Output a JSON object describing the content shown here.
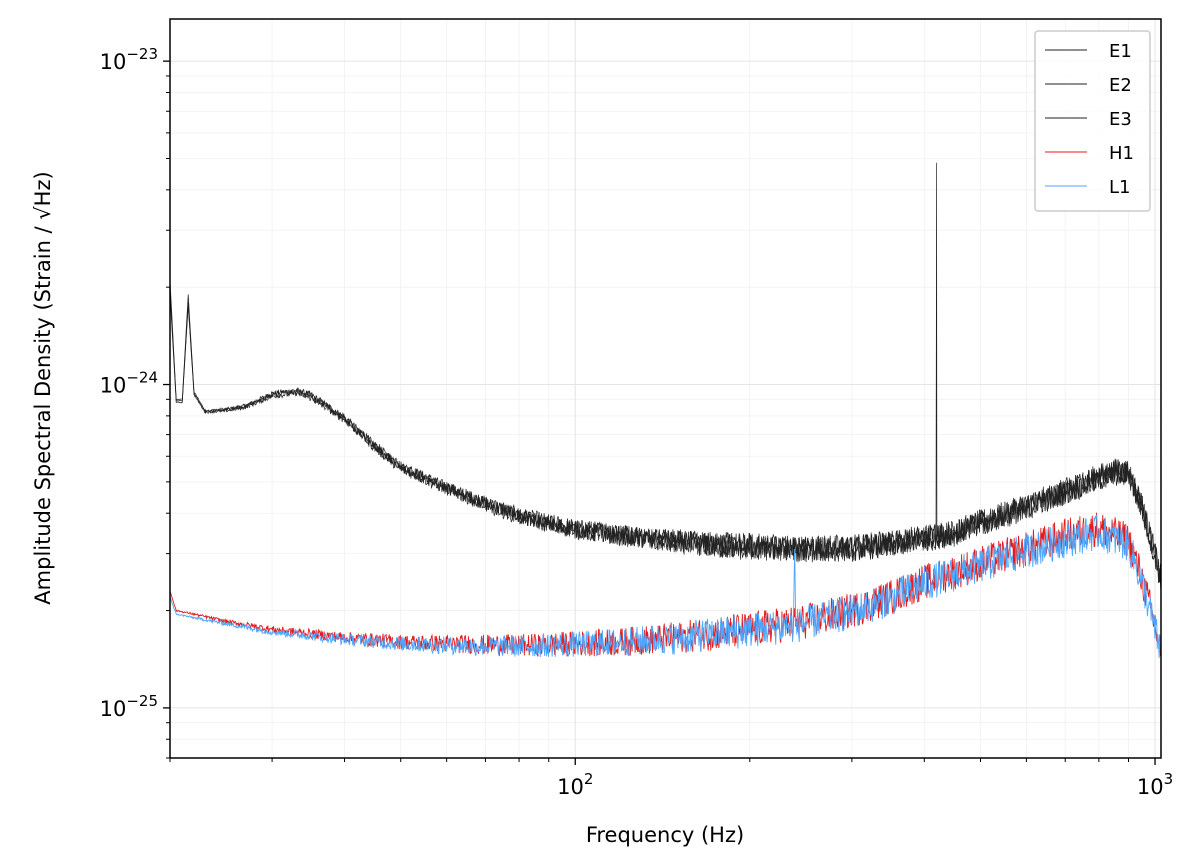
{
  "chart_data": {
    "type": "line",
    "title": "",
    "xlabel": "Frequency (Hz)",
    "ylabel": "Amplitude Spectral Density (Strain / √Hz)",
    "x_scale": "log",
    "y_scale": "log",
    "xlim": [
      20,
      1024
    ],
    "ylim": [
      7e-26,
      1.35e-23
    ],
    "x_ticks": [
      {
        "value": 100,
        "base": "10",
        "exp": "2"
      },
      {
        "value": 1000,
        "base": "10",
        "exp": "3"
      }
    ],
    "y_ticks": [
      {
        "value": 1e-25,
        "base": "10",
        "exp": "−25"
      },
      {
        "value": 1e-24,
        "base": "10",
        "exp": "−24"
      },
      {
        "value": 1e-23,
        "base": "10",
        "exp": "−23"
      }
    ],
    "grid": true,
    "legend_position": "upper-right",
    "series": [
      {
        "name": "E1",
        "color": "#222222",
        "x": [
          20,
          20.5,
          21,
          21.5,
          22,
          23,
          25,
          27,
          30,
          33,
          35,
          40,
          45,
          50,
          60,
          70,
          80,
          90,
          100,
          120,
          150,
          180,
          200,
          250,
          300,
          350,
          400,
          419,
          420,
          420.5,
          421,
          422,
          450,
          500,
          600,
          700,
          800,
          850,
          900,
          950,
          1000,
          1024
        ],
        "y": [
          2.1e-24,
          9e-25,
          9e-25,
          1.9e-24,
          9.5e-25,
          8.3e-25,
          8.4e-25,
          8.6e-25,
          9.4e-25,
          9.6e-25,
          9.3e-25,
          7.9e-25,
          6.5e-25,
          5.6e-25,
          4.8e-25,
          4.3e-25,
          3.95e-25,
          3.75e-25,
          3.6e-25,
          3.45e-25,
          3.3e-25,
          3.2e-25,
          3.18e-25,
          3.12e-25,
          3.15e-25,
          3.25e-25,
          3.38e-25,
          3.4e-25,
          4.85e-24,
          3.4e-25,
          3.4e-25,
          3.42e-25,
          3.5e-25,
          3.75e-25,
          4.2e-25,
          4.7e-25,
          5.2e-25,
          5.4e-25,
          5.4e-25,
          4.2e-25,
          3e-25,
          2.5e-25
        ]
      },
      {
        "name": "E2",
        "color": "#222222",
        "x": [
          20,
          20.5,
          21,
          21.5,
          22,
          23,
          25,
          27,
          30,
          33,
          35,
          40,
          45,
          50,
          60,
          70,
          80,
          90,
          100,
          120,
          150,
          180,
          200,
          250,
          300,
          350,
          400,
          450,
          500,
          600,
          700,
          800,
          850,
          900,
          950,
          1000,
          1024
        ],
        "y": [
          1.9e-24,
          8.8e-25,
          8.8e-25,
          1.75e-24,
          9.3e-25,
          8.2e-25,
          8.3e-25,
          8.5e-25,
          9.2e-25,
          9.4e-25,
          9.1e-25,
          7.8e-25,
          6.4e-25,
          5.5e-25,
          4.75e-25,
          4.25e-25,
          3.9e-25,
          3.7e-25,
          3.55e-25,
          3.4e-25,
          3.25e-25,
          3.15e-25,
          3.12e-25,
          3.08e-25,
          3.1e-25,
          3.2e-25,
          3.33e-25,
          3.45e-25,
          3.7e-25,
          4.15e-25,
          4.65e-25,
          5.1e-25,
          5.3e-25,
          5.3e-25,
          4.1e-25,
          2.95e-25,
          2.45e-25
        ]
      },
      {
        "name": "E3",
        "color": "#222222",
        "x": [
          20,
          20.5,
          21,
          21.5,
          22,
          23,
          25,
          27,
          30,
          33,
          35,
          40,
          45,
          50,
          60,
          70,
          80,
          90,
          100,
          120,
          150,
          180,
          200,
          250,
          300,
          350,
          400,
          450,
          500,
          600,
          700,
          800,
          850,
          900,
          950,
          1000,
          1024
        ],
        "y": [
          2e-24,
          8.9e-25,
          8.9e-25,
          1.8e-24,
          9.4e-25,
          8.25e-25,
          8.35e-25,
          8.55e-25,
          9.3e-25,
          9.5e-25,
          9.2e-25,
          7.85e-25,
          6.45e-25,
          5.55e-25,
          4.78e-25,
          4.28e-25,
          3.92e-25,
          3.72e-25,
          3.58e-25,
          3.42e-25,
          3.28e-25,
          3.18e-25,
          3.15e-25,
          3.1e-25,
          3.12e-25,
          3.22e-25,
          3.35e-25,
          3.48e-25,
          3.72e-25,
          4.18e-25,
          4.68e-25,
          5.15e-25,
          5.35e-25,
          5.35e-25,
          4.15e-25,
          2.98e-25,
          2.48e-25
        ]
      },
      {
        "name": "H1",
        "color": "#e41a1c",
        "x": [
          20,
          20.5,
          22,
          25,
          30,
          40,
          50,
          60,
          70,
          80,
          100,
          120,
          150,
          200,
          250,
          300,
          350,
          400,
          500,
          600,
          700,
          800,
          900,
          950,
          1000,
          1024
        ],
        "y": [
          2.3e-25,
          2e-25,
          1.95e-25,
          1.85e-25,
          1.75e-25,
          1.65e-25,
          1.6e-25,
          1.58e-25,
          1.57e-25,
          1.56e-25,
          1.58e-25,
          1.6e-25,
          1.65e-25,
          1.75e-25,
          1.85e-25,
          2e-25,
          2.2e-25,
          2.45e-25,
          2.8e-25,
          3.1e-25,
          3.4e-25,
          3.6e-25,
          3.3e-25,
          2.5e-25,
          1.8e-25,
          1.5e-25
        ]
      },
      {
        "name": "L1",
        "color": "#4da6ff",
        "x": [
          20,
          20.5,
          22,
          25,
          30,
          40,
          50,
          60,
          70,
          80,
          100,
          120,
          150,
          200,
          238,
          239,
          240,
          250,
          300,
          350,
          400,
          500,
          600,
          700,
          800,
          900,
          950,
          1000,
          1024
        ],
        "y": [
          2.2e-25,
          1.95e-25,
          1.9e-25,
          1.82e-25,
          1.72e-25,
          1.63e-25,
          1.58e-25,
          1.56e-25,
          1.55e-25,
          1.55e-25,
          1.57e-25,
          1.6e-25,
          1.64e-25,
          1.74e-25,
          1.8e-25,
          3.1e-25,
          1.8e-25,
          1.83e-25,
          1.98e-25,
          2.18e-25,
          2.42e-25,
          2.75e-25,
          3.05e-25,
          3.3e-25,
          3.5e-25,
          3.2e-25,
          2.45e-25,
          1.75e-25,
          1.48e-25
        ]
      }
    ]
  }
}
